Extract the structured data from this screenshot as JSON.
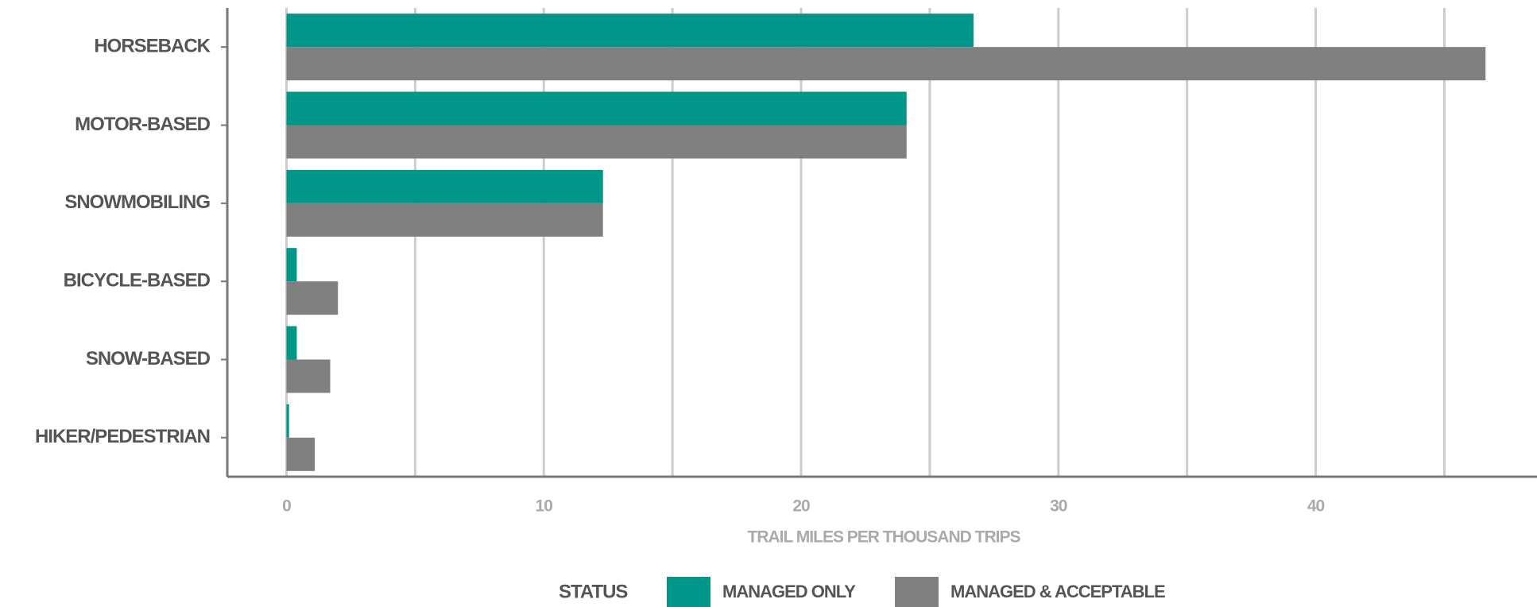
{
  "chart_data": {
    "type": "hbar",
    "categories": [
      "HORSEBACK",
      "MOTOR-BASED",
      "SNOWMOBILING",
      "BICYCLE-BASED",
      "SNOW-BASED",
      "HIKER/PEDESTRIAN"
    ],
    "series": [
      {
        "name": "MANAGED ONLY",
        "color": "#00968a",
        "values": [
          26.7,
          24.1,
          12.3,
          0.4,
          0.4,
          0.1
        ]
      },
      {
        "name": "MANAGED & ACCEPTABLE",
        "color": "#808080",
        "values": [
          46.6,
          24.1,
          12.3,
          2.0,
          1.7,
          1.1
        ]
      }
    ],
    "xlabel": "TRAIL MILES PER THOUSAND TRIPS",
    "legend_title": "STATUS",
    "xlim": [
      -2.3,
      48.6
    ],
    "xticks": [
      0,
      10,
      20,
      30,
      40
    ],
    "minor_xticks": [
      5,
      15,
      25,
      35,
      45
    ],
    "grid": true,
    "legend": "bottom"
  }
}
